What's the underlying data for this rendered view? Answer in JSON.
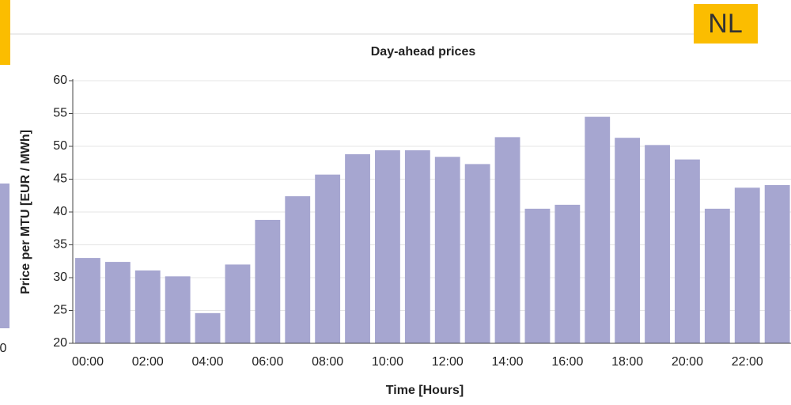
{
  "badge": "NL",
  "side_panel": {
    "label": "0"
  },
  "chart_data": {
    "type": "bar",
    "title": "Day-ahead prices",
    "x_label": "Time [Hours]",
    "y_label": "Price per MTU [EUR / MWh]",
    "categories": [
      "00:00",
      null,
      "02:00",
      null,
      "04:00",
      null,
      "06:00",
      null,
      "08:00",
      null,
      "10:00",
      null,
      "12:00",
      null,
      "14:00",
      null,
      "16:00",
      null,
      "18:00",
      null,
      "20:00",
      null,
      "22:00",
      null
    ],
    "values": [
      33.0,
      32.4,
      31.1,
      30.2,
      24.6,
      32.0,
      38.8,
      42.4,
      45.7,
      48.8,
      49.4,
      49.4,
      48.4,
      47.3,
      51.4,
      40.5,
      41.1,
      54.5,
      51.3,
      50.2,
      48.0,
      40.5,
      43.7,
      44.1
    ],
    "color": "#a6a6d0",
    "ylim": [
      20,
      60
    ],
    "yticks": [
      20,
      25,
      30,
      35,
      40,
      45,
      50,
      55,
      60
    ],
    "grid": true
  }
}
